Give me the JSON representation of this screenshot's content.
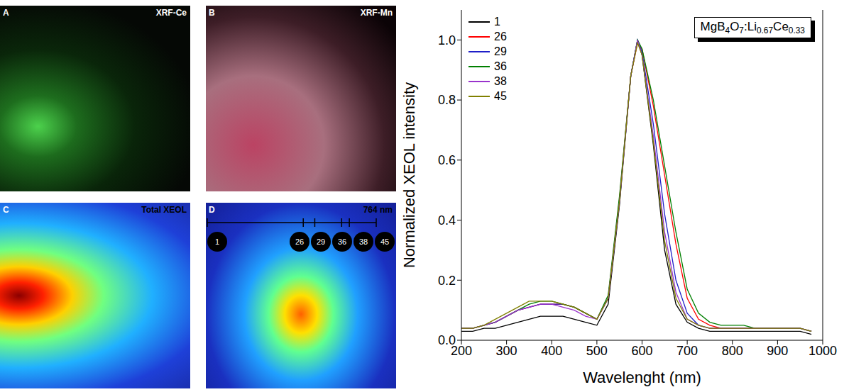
{
  "chart_data": {
    "type": "line",
    "annotation": "MgB4O7:Li0.67Ce0.33",
    "x_label": "Wavelenght (nm)",
    "y_label": "Normalized XEOL intensity",
    "x": [
      200,
      225,
      250,
      275,
      300,
      325,
      350,
      375,
      400,
      425,
      450,
      475,
      500,
      525,
      550,
      575,
      590,
      600,
      625,
      650,
      675,
      700,
      725,
      750,
      775,
      800,
      825,
      850,
      875,
      900,
      925,
      950,
      975
    ],
    "xlim": [
      200,
      1000
    ],
    "xticks": [
      200,
      300,
      400,
      500,
      600,
      700,
      800,
      900,
      1000
    ],
    "ylim": [
      0,
      1.1
    ],
    "yticks": [
      {
        "value": 0,
        "label": "0.0"
      },
      0.2,
      0.4,
      0.6,
      0.8,
      {
        "value": 1,
        "label": "1.0"
      }
    ],
    "legend": "upper left",
    "series": [
      {
        "name": "1",
        "color": "#000000",
        "values": [
          0.03,
          0.03,
          0.04,
          0.04,
          0.05,
          0.06,
          0.07,
          0.08,
          0.08,
          0.08,
          0.07,
          0.06,
          0.05,
          0.12,
          0.45,
          0.88,
          1.0,
          0.95,
          0.65,
          0.3,
          0.12,
          0.06,
          0.04,
          0.03,
          0.03,
          0.03,
          0.03,
          0.03,
          0.03,
          0.03,
          0.03,
          0.03,
          0.02
        ]
      },
      {
        "name": "26",
        "color": "#ff0000",
        "values": [
          0.04,
          0.04,
          0.05,
          0.06,
          0.08,
          0.1,
          0.11,
          0.12,
          0.12,
          0.12,
          0.11,
          0.09,
          0.07,
          0.14,
          0.47,
          0.88,
          0.99,
          0.97,
          0.78,
          0.55,
          0.32,
          0.14,
          0.07,
          0.05,
          0.04,
          0.04,
          0.04,
          0.04,
          0.04,
          0.04,
          0.04,
          0.04,
          0.03
        ]
      },
      {
        "name": "29",
        "color": "#1f1fc8",
        "values": [
          0.04,
          0.04,
          0.05,
          0.06,
          0.08,
          0.1,
          0.11,
          0.12,
          0.12,
          0.12,
          0.11,
          0.09,
          0.07,
          0.14,
          0.46,
          0.88,
          1.0,
          0.96,
          0.72,
          0.42,
          0.2,
          0.09,
          0.05,
          0.04,
          0.04,
          0.04,
          0.04,
          0.04,
          0.04,
          0.04,
          0.04,
          0.04,
          0.03
        ]
      },
      {
        "name": "36",
        "color": "#007f00",
        "values": [
          0.04,
          0.04,
          0.05,
          0.06,
          0.08,
          0.1,
          0.12,
          0.13,
          0.13,
          0.12,
          0.11,
          0.09,
          0.07,
          0.15,
          0.48,
          0.88,
          1.0,
          0.97,
          0.8,
          0.58,
          0.36,
          0.17,
          0.09,
          0.06,
          0.05,
          0.05,
          0.05,
          0.04,
          0.04,
          0.04,
          0.04,
          0.04,
          0.03
        ]
      },
      {
        "name": "38",
        "color": "#9933cc",
        "values": [
          0.04,
          0.04,
          0.05,
          0.06,
          0.08,
          0.1,
          0.11,
          0.12,
          0.12,
          0.11,
          0.1,
          0.08,
          0.07,
          0.14,
          0.46,
          0.88,
          1.0,
          0.95,
          0.68,
          0.36,
          0.16,
          0.07,
          0.05,
          0.04,
          0.04,
          0.04,
          0.04,
          0.04,
          0.04,
          0.04,
          0.04,
          0.04,
          0.03
        ]
      },
      {
        "name": "45",
        "color": "#808000",
        "values": [
          0.04,
          0.04,
          0.05,
          0.07,
          0.09,
          0.11,
          0.13,
          0.13,
          0.13,
          0.12,
          0.11,
          0.09,
          0.07,
          0.14,
          0.46,
          0.88,
          0.99,
          0.95,
          0.66,
          0.33,
          0.14,
          0.07,
          0.05,
          0.04,
          0.04,
          0.04,
          0.04,
          0.04,
          0.04,
          0.04,
          0.04,
          0.04,
          0.03
        ]
      }
    ]
  },
  "panels": [
    {
      "letter": "A",
      "label": "XRF-Ce"
    },
    {
      "letter": "B",
      "label": "XRF-Mn"
    },
    {
      "letter": "C",
      "label": "Total XEOL"
    },
    {
      "letter": "D",
      "label": "764 nm",
      "points": [
        1,
        26,
        29,
        36,
        38,
        45
      ]
    }
  ]
}
